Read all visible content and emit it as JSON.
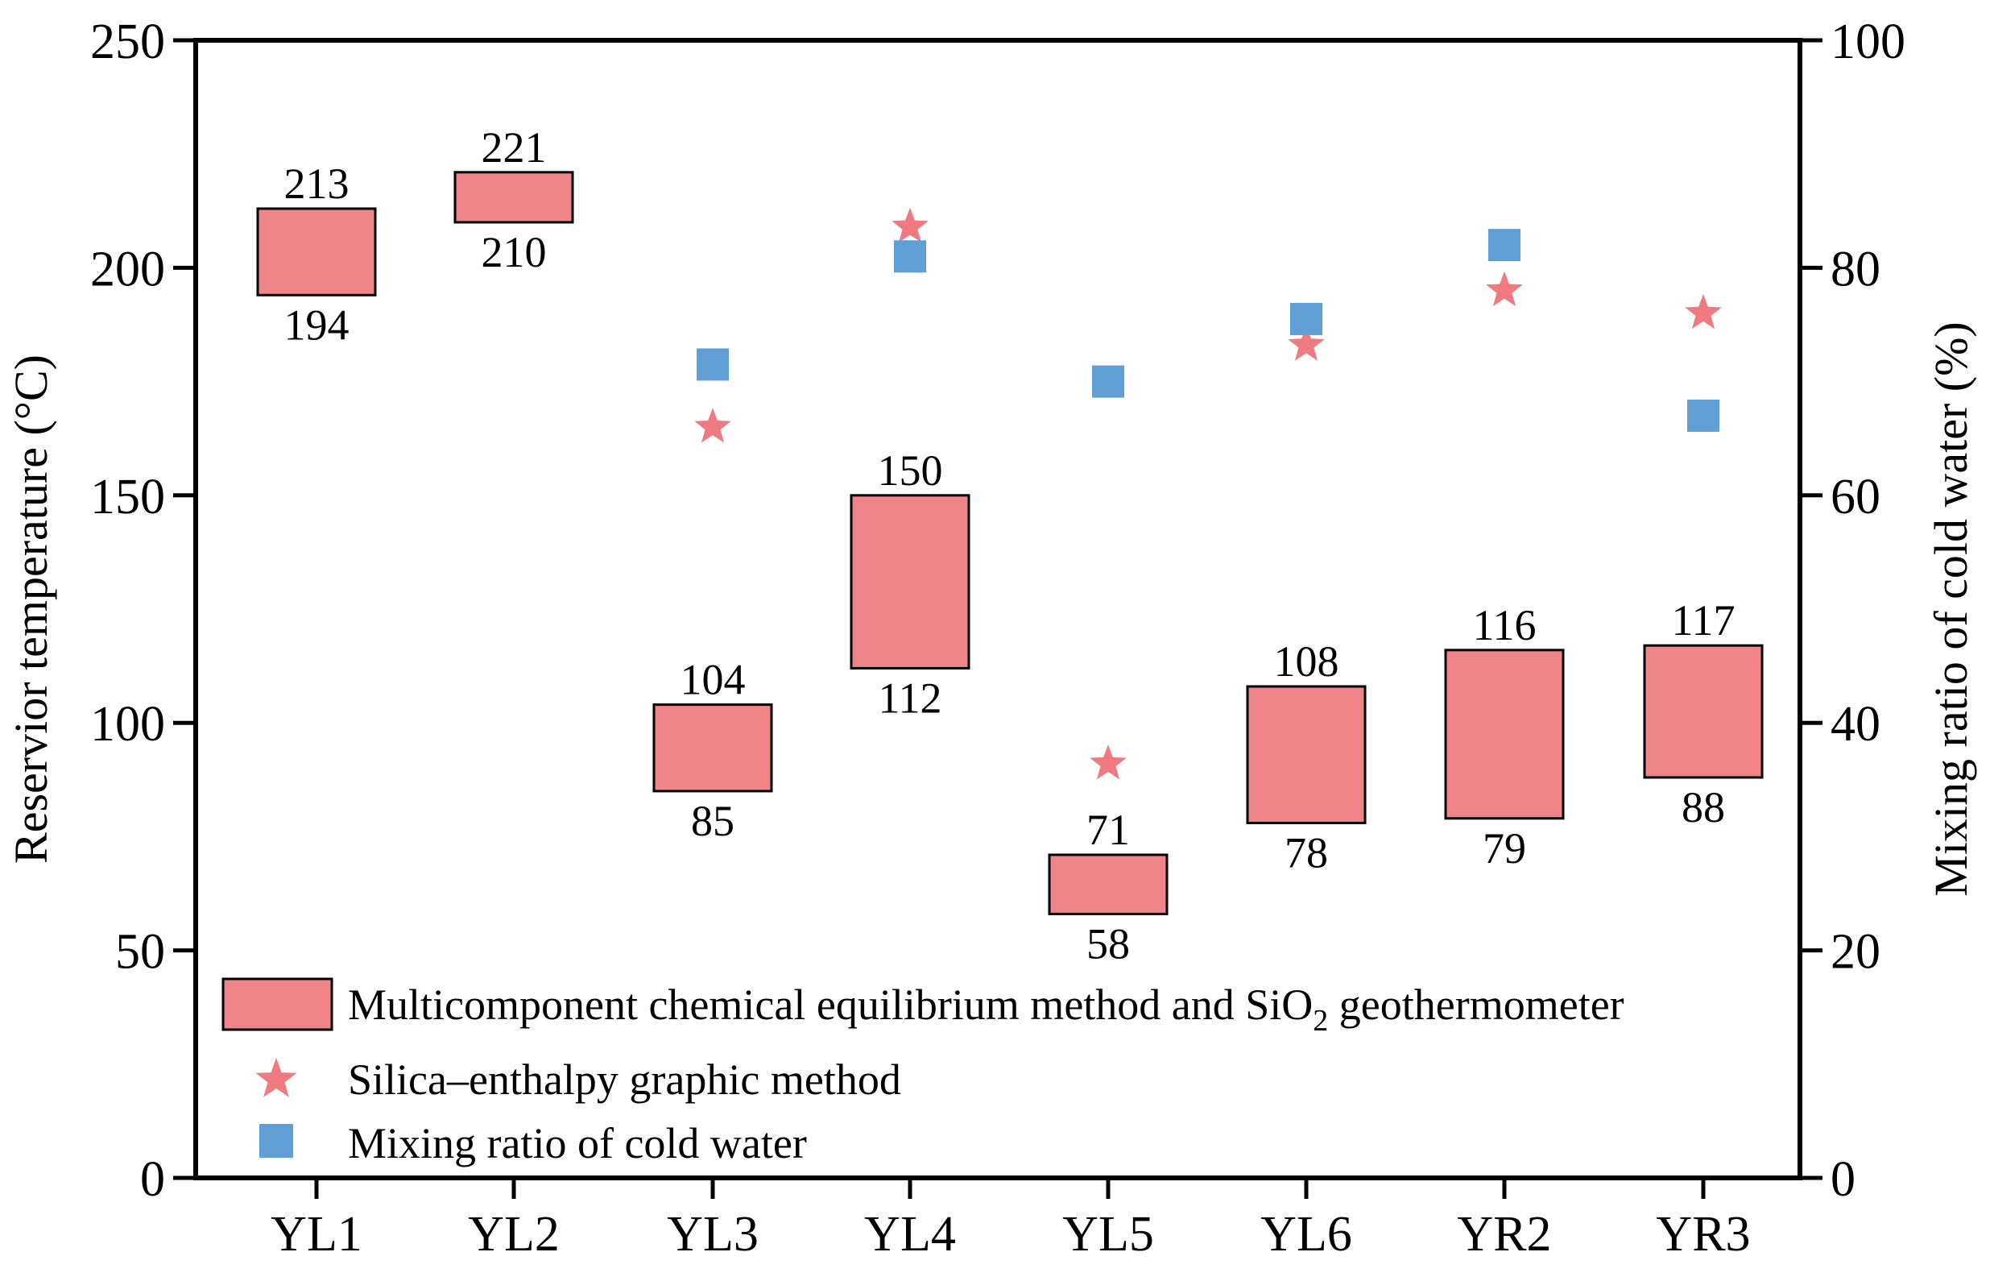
{
  "chart_data": {
    "type": "floating-bar-with-scatter",
    "categories": [
      "YL1",
      "YL2",
      "YL3",
      "YL4",
      "YL5",
      "YL6",
      "YR2",
      "YR3"
    ],
    "ranges": [
      {
        "low": 194,
        "high": 213,
        "low_label": "194",
        "high_label": "213"
      },
      {
        "low": 210,
        "high": 221,
        "low_label": "210",
        "high_label": "221"
      },
      {
        "low": 85,
        "high": 104,
        "low_label": "85",
        "high_label": "104"
      },
      {
        "low": 112,
        "high": 150,
        "low_label": "112",
        "high_label": "150"
      },
      {
        "low": 58,
        "high": 71,
        "low_label": "58",
        "high_label": "71"
      },
      {
        "low": 78,
        "high": 108,
        "low_label": "78",
        "high_label": "108"
      },
      {
        "low": 79,
        "high": 116,
        "low_label": "79",
        "high_label": "116"
      },
      {
        "low": 88,
        "high": 117,
        "low_label": "88",
        "high_label": "117"
      }
    ],
    "silica_enthalpy": [
      null,
      null,
      165,
      209,
      91,
      183,
      195,
      190
    ],
    "mixing_ratio": [
      null,
      null,
      71.5,
      81,
      70,
      75.5,
      82,
      67
    ],
    "y_left": {
      "label": "Reservior temperature (°C)",
      "min": 0,
      "max": 250,
      "ticks": [
        "0",
        "50",
        "100",
        "150",
        "200",
        "250"
      ]
    },
    "y_right": {
      "label": "Mixing ratio of cold water (%)",
      "min": 0,
      "max": 100,
      "ticks": [
        "0",
        "20",
        "40",
        "60",
        "80",
        "100"
      ]
    },
    "legend": {
      "position": "bottom-left",
      "bar_text_before": "Multicomponent chemical equilibrium method and SiO",
      "bar_sub": "2",
      "bar_text_after": " geothermometer",
      "star": "Silica–enthalpy graphic method",
      "square": "Mixing ratio of cold water"
    },
    "colors": {
      "bar_fill": "#f08589",
      "bar_stroke": "#000000",
      "star": "#ef7b80",
      "square": "#609fd6"
    }
  }
}
